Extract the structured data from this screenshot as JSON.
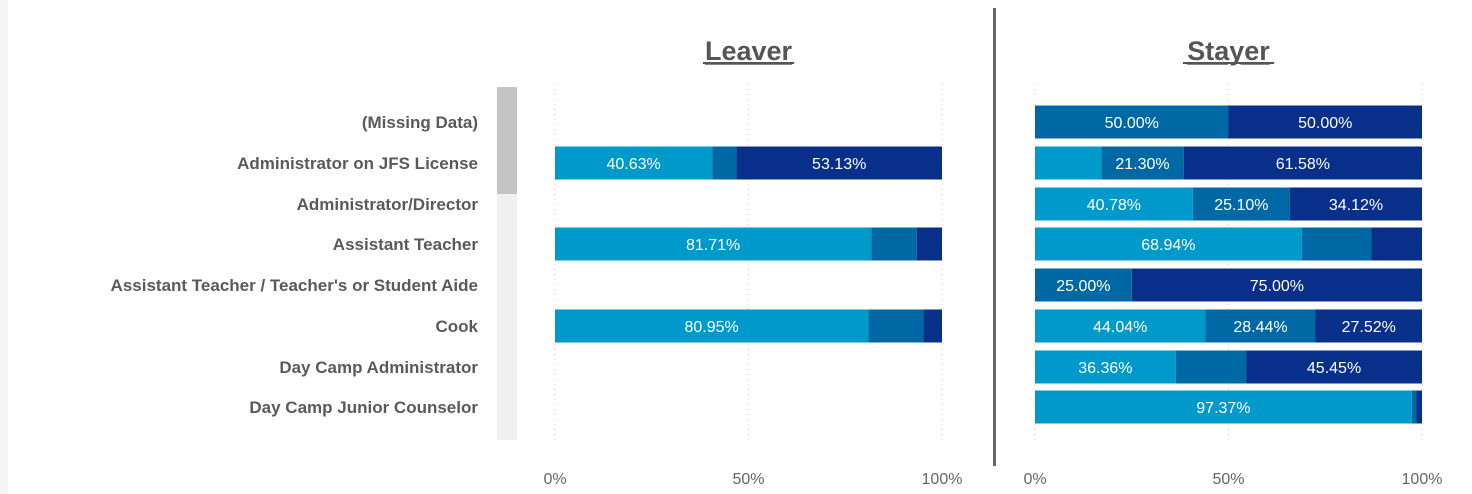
{
  "chart_data": {
    "type": "bar",
    "orientation": "horizontal",
    "stacked": true,
    "categories": [
      "(Missing Data)",
      "Administrator on JFS License",
      "Administrator/Director",
      "Assistant Teacher",
      "Assistant Teacher / Teacher's or Student Aide",
      "Cook",
      "Day Camp Administrator",
      "Day Camp Junior Counselor"
    ],
    "xlim": [
      0,
      100
    ],
    "x_ticks": [
      "0%",
      "50%",
      "100%"
    ],
    "grid": "vertical-dotted",
    "colors": [
      "#0099cc",
      "#0069a5",
      "#08308a"
    ],
    "panels": [
      {
        "title": "Leaver",
        "rows": [
          null,
          {
            "values": [
              40.63,
              6.24,
              53.13
            ],
            "labels": [
              "40.63%",
              "",
              "53.13%"
            ]
          },
          null,
          {
            "values": [
              81.71,
              11.8,
              6.49
            ],
            "labels": [
              "81.71%",
              "",
              ""
            ]
          },
          null,
          {
            "values": [
              80.95,
              14.28,
              4.77
            ],
            "labels": [
              "80.95%",
              "",
              ""
            ]
          },
          null,
          null
        ]
      },
      {
        "title": "Stayer",
        "rows": [
          {
            "values": [
              0,
              50.0,
              50.0
            ],
            "labels": [
              "",
              "50.00%",
              "50.00%"
            ]
          },
          {
            "values": [
              17.12,
              21.3,
              61.58
            ],
            "labels": [
              "",
              "21.30%",
              "61.58%"
            ]
          },
          {
            "values": [
              40.78,
              25.1,
              34.12
            ],
            "labels": [
              "40.78%",
              "25.10%",
              "34.12%"
            ]
          },
          {
            "values": [
              68.94,
              18.0,
              13.06
            ],
            "labels": [
              "68.94%",
              "",
              ""
            ]
          },
          {
            "values": [
              0,
              25.0,
              75.0
            ],
            "labels": [
              "",
              "25.00%",
              "75.00%"
            ]
          },
          {
            "values": [
              44.04,
              28.44,
              27.52
            ],
            "labels": [
              "44.04%",
              "28.44%",
              "27.52%"
            ]
          },
          {
            "values": [
              36.36,
              18.19,
              45.45
            ],
            "labels": [
              "36.36%",
              "",
              "45.45%"
            ]
          },
          {
            "values": [
              97.37,
              1.2,
              1.43
            ],
            "labels": [
              "97.37%",
              "",
              ""
            ]
          }
        ]
      }
    ]
  }
}
